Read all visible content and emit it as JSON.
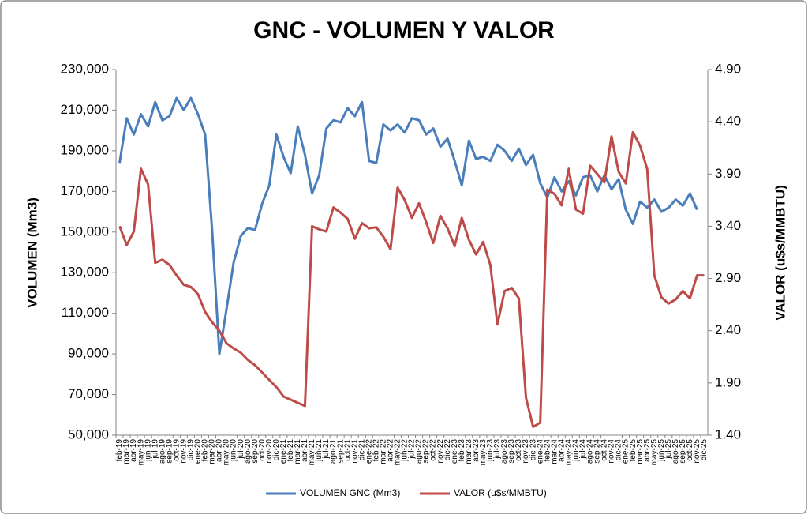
{
  "chart_data": {
    "type": "line",
    "title": "GNC - VOLUMEN Y VALOR",
    "y_label": "VOLUMEN (Mm3)",
    "y2_label": "VALOR (u$s/MMBTU)",
    "categories": [
      "feb-19",
      "mar-19",
      "abr-19",
      "may-19",
      "jun-19",
      "jul-19",
      "ago-19",
      "sep-19",
      "oct-19",
      "nov-19",
      "dic-19",
      "ene-20",
      "feb-20",
      "mar-20",
      "abr-20",
      "may-20",
      "jun-20",
      "jul-20",
      "ago-20",
      "sep-20",
      "oct-20",
      "nov-20",
      "dic-20",
      "ene-21",
      "feb-21",
      "mar-21",
      "abr-21",
      "may-21",
      "jun-21",
      "jul-21",
      "ago-21",
      "sep-21",
      "oct-21",
      "nov-21",
      "dic-21",
      "ene-22",
      "feb-22",
      "mar-22",
      "abr-22",
      "may-22",
      "jun-22",
      "jul-22",
      "ago-22",
      "sep-22",
      "oct-22",
      "nov-22",
      "dic-22",
      "ene-23",
      "feb-23",
      "mar-23",
      "abr-23",
      "may-23",
      "jun-23",
      "jul-23",
      "ago-23",
      "sep-23",
      "oct-23",
      "nov-23",
      "dic-23",
      "ene-24",
      "feb-24",
      "mar-24",
      "abr-24",
      "may-24",
      "jun-24",
      "jul-24",
      "ago-24",
      "sep-24",
      "oct-24",
      "nov-24",
      "dic-24",
      "ene-25",
      "feb-25",
      "mar-25",
      "abr-25",
      "may-25",
      "jun-25",
      "jul-25",
      "ago-25",
      "sep-25",
      "oct-25",
      "nov-25",
      "dic-25"
    ],
    "series": [
      {
        "name": "VOLUMEN GNC (Mm3)",
        "color": "#4a7ebb",
        "axis": "y",
        "values": [
          184000,
          206000,
          198000,
          208000,
          202000,
          214000,
          205000,
          207000,
          216000,
          210000,
          216000,
          208000,
          198000,
          150000,
          90000,
          112000,
          135000,
          148000,
          152000,
          151000,
          164000,
          173000,
          198000,
          187000,
          179000,
          202000,
          188000,
          169000,
          178000,
          201000,
          205000,
          204000,
          211000,
          207000,
          214000,
          185000,
          184000,
          203000,
          200000,
          203000,
          199000,
          206000,
          205000,
          198000,
          201000,
          192000,
          196000,
          185000,
          173000,
          195000,
          186000,
          187000,
          185000,
          193000,
          190000,
          185000,
          191000,
          183000,
          188000,
          174000,
          167000,
          177000,
          170000,
          175000,
          168000,
          177000,
          178000,
          170000,
          178000,
          171000,
          176000,
          161000,
          154000,
          165000,
          162000,
          166000,
          160000,
          162000,
          166000,
          163000,
          169000,
          161000,
          null
        ]
      },
      {
        "name": "VALOR (u$s/MMBTU)",
        "color": "#be4b48",
        "axis": "y2",
        "values": [
          3.4,
          3.22,
          3.35,
          3.95,
          3.8,
          3.05,
          3.08,
          3.03,
          2.93,
          2.84,
          2.82,
          2.75,
          2.58,
          2.48,
          2.4,
          2.28,
          2.23,
          2.19,
          2.12,
          2.07,
          2.0,
          1.93,
          1.86,
          1.77,
          1.74,
          1.71,
          1.68,
          3.4,
          3.37,
          3.35,
          3.58,
          3.53,
          3.47,
          3.28,
          3.43,
          3.38,
          3.39,
          3.3,
          3.18,
          3.77,
          3.65,
          3.48,
          3.62,
          3.44,
          3.24,
          3.5,
          3.38,
          3.21,
          3.48,
          3.27,
          3.13,
          3.25,
          3.03,
          2.46,
          2.78,
          2.81,
          2.71,
          1.76,
          1.48,
          1.52,
          3.75,
          3.71,
          3.6,
          3.95,
          3.56,
          3.52,
          3.98,
          3.9,
          3.82,
          4.26,
          3.92,
          3.81,
          4.3,
          4.17,
          3.95,
          2.93,
          2.72,
          2.66,
          2.7,
          2.78,
          2.71,
          2.93,
          2.93
        ]
      }
    ],
    "ylim": [
      50000,
      230000
    ],
    "yticks": [
      {
        "value": 50000,
        "label": "50,000"
      },
      {
        "value": 70000,
        "label": "70,000"
      },
      {
        "value": 90000,
        "label": "90,000"
      },
      {
        "value": 110000,
        "label": "110,000"
      },
      {
        "value": 130000,
        "label": "130,000"
      },
      {
        "value": 150000,
        "label": "150,000"
      },
      {
        "value": 170000,
        "label": "170,000"
      },
      {
        "value": 190000,
        "label": "190,000"
      },
      {
        "value": 210000,
        "label": "210,000"
      },
      {
        "value": 230000,
        "label": "230,000"
      }
    ],
    "y2lim": [
      1.4,
      4.9
    ],
    "y2ticks": [
      {
        "value": 1.4,
        "label": "1.40"
      },
      {
        "value": 1.9,
        "label": "1.90"
      },
      {
        "value": 2.4,
        "label": "2.40"
      },
      {
        "value": 2.9,
        "label": "2.90"
      },
      {
        "value": 3.4,
        "label": "3.40"
      },
      {
        "value": 3.9,
        "label": "3.90"
      },
      {
        "value": 4.4,
        "label": "4.40"
      },
      {
        "value": 4.9,
        "label": "4.90"
      }
    ],
    "legend": "bottom"
  }
}
